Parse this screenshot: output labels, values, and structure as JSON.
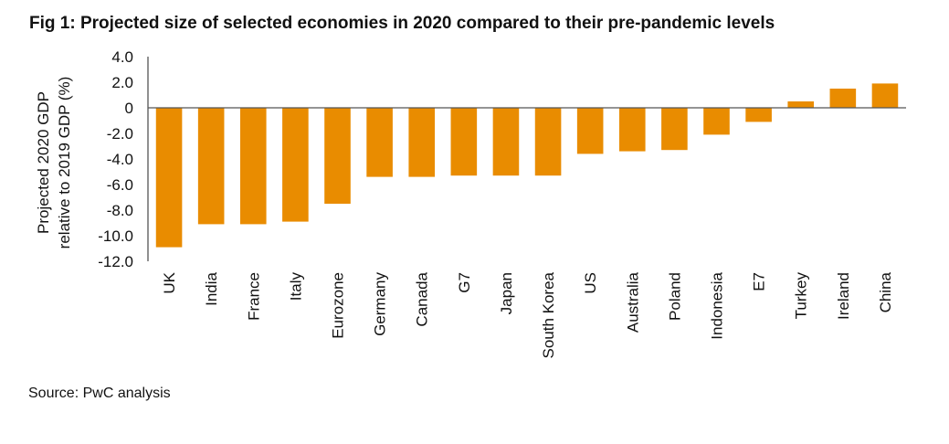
{
  "chart_data": {
    "type": "bar",
    "title": "Fig 1: Projected size of selected economies in 2020 compared to their pre-pandemic levels",
    "xlabel": "",
    "ylabel": "Projected 2020 GDP relative to 2019 GDP (%)",
    "ylabel_lines": [
      "Projected 2020 GDP",
      "relative to 2019 GDP (%)"
    ],
    "ylim": [
      -12,
      4
    ],
    "yticks": [
      4,
      2,
      0,
      -2,
      -4,
      -6,
      -8,
      -10,
      -12
    ],
    "ytick_labels": [
      "4.0",
      "2.0",
      "0",
      "-2.0",
      "-4.0",
      "-6.0",
      "-8.0",
      "-10.0",
      "-12.0"
    ],
    "grid": false,
    "legend": "none",
    "bar_color": "#E98C00",
    "categories": [
      "UK",
      "India",
      "France",
      "Italy",
      "Eurozone",
      "Germany",
      "Canada",
      "G7",
      "Japan",
      "South Korea",
      "US",
      "Australia",
      "Poland",
      "Indonesia",
      "E7",
      "Turkey",
      "Ireland",
      "China"
    ],
    "values": [
      -10.9,
      -9.1,
      -9.1,
      -8.9,
      -7.5,
      -5.4,
      -5.4,
      -5.3,
      -5.3,
      -5.3,
      -3.6,
      -3.4,
      -3.3,
      -2.1,
      -1.1,
      0.5,
      1.5,
      1.9
    ],
    "source": "Source: PwC analysis"
  }
}
